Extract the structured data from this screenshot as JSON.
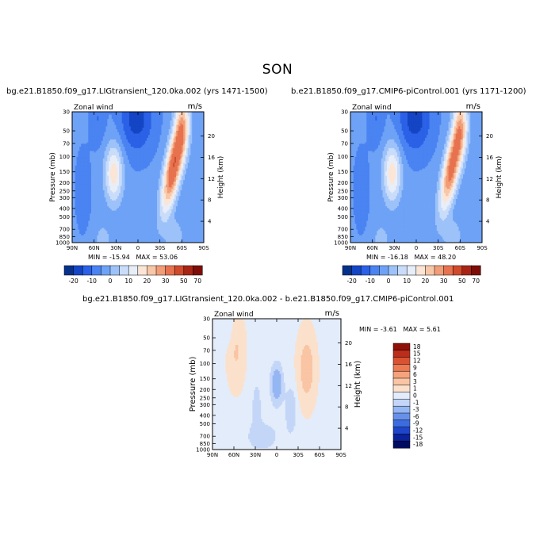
{
  "title": "SON",
  "colors": {
    "cbar10": [
      "#05318b",
      "#1445c4",
      "#2b61e6",
      "#4a83f2",
      "#6ea2f6",
      "#9cc2f9",
      "#c9dcfa",
      "#e8eef8",
      "#fbe5d6",
      "#f8c7a8",
      "#f19d77",
      "#e7724f",
      "#d04a2c",
      "#a82516",
      "#7d0d08"
    ],
    "cbar_diff": [
      "#020c5e",
      "#0a239c",
      "#1f45cb",
      "#3c6cdf",
      "#6690ea",
      "#94b6f2",
      "#c4d6f8",
      "#e3ecfa",
      "#fbe1cc",
      "#f9c5a4",
      "#f5a37c",
      "#ec7a53",
      "#da5232",
      "#bd2d1b",
      "#8e1008"
    ]
  },
  "chart_data": [
    {
      "type": "heatmap",
      "panel": "left",
      "title": "bg.e21.B1850.f09_g17.LIGtransient_120.0ka.002 (yrs 1471-1500)",
      "variable": "Zonal wind",
      "units": "m/s",
      "ylabel": "Pressure (mb)",
      "ylabel_right": "Height (km)",
      "xticks": [
        "90N",
        "60N",
        "30N",
        "0",
        "30S",
        "60S",
        "90S"
      ],
      "yticks": [
        "30",
        "50",
        "70",
        "100",
        "150",
        "200",
        "250",
        "300",
        "400",
        "500",
        "700",
        "850",
        "1000"
      ],
      "yticks_right": [
        "20",
        "16",
        "12",
        "8",
        "4"
      ],
      "min": "-15.94",
      "max": "53.06",
      "min_label": "MIN =",
      "max_label": "MAX =",
      "levels": [
        "-20",
        "-10",
        "0",
        "10",
        "20",
        "30",
        "50",
        "70"
      ],
      "peak_jet_ms": 53.06
    },
    {
      "type": "heatmap",
      "panel": "right",
      "title": "b.e21.B1850.f09_g17.CMIP6-piControl.001 (yrs 1171-1200)",
      "variable": "Zonal wind",
      "units": "m/s",
      "ylabel": "Pressure (mb)",
      "ylabel_right": "Height (km)",
      "xticks": [
        "90N",
        "60N",
        "30N",
        "0",
        "30S",
        "60S",
        "90S"
      ],
      "yticks": [
        "30",
        "50",
        "70",
        "100",
        "150",
        "200",
        "250",
        "300",
        "400",
        "500",
        "700",
        "850",
        "1000"
      ],
      "yticks_right": [
        "20",
        "16",
        "12",
        "8",
        "4"
      ],
      "min": "-16.18",
      "max": "48.20",
      "min_label": "MIN =",
      "max_label": "MAX =",
      "levels": [
        "-20",
        "-10",
        "0",
        "10",
        "20",
        "30",
        "50",
        "70"
      ],
      "peak_jet_ms": 48.2
    },
    {
      "type": "heatmap",
      "panel": "difference",
      "title": "bg.e21.B1850.f09_g17.LIGtransient_120.0ka.002 - b.e21.B1850.f09_g17.CMIP6-piControl.001",
      "variable": "Zonal wind",
      "units": "m/s",
      "ylabel": "Pressure (mb)",
      "ylabel_right": "Height (km)",
      "xticks": [
        "90N",
        "60N",
        "30N",
        "0",
        "30S",
        "60S",
        "90S"
      ],
      "yticks": [
        "30",
        "50",
        "70",
        "100",
        "150",
        "200",
        "250",
        "300",
        "400",
        "500",
        "700",
        "850",
        "1000"
      ],
      "yticks_right": [
        "20",
        "16",
        "12",
        "8",
        "4"
      ],
      "min": "-3.61",
      "max": "5.61",
      "min_label": "MIN =",
      "max_label": "MAX =",
      "levels": [
        "18",
        "15",
        "12",
        "9",
        "6",
        "3",
        "1",
        "0",
        "-1",
        "-3",
        "-6",
        "-9",
        "-12",
        "-15",
        "-18"
      ]
    }
  ]
}
